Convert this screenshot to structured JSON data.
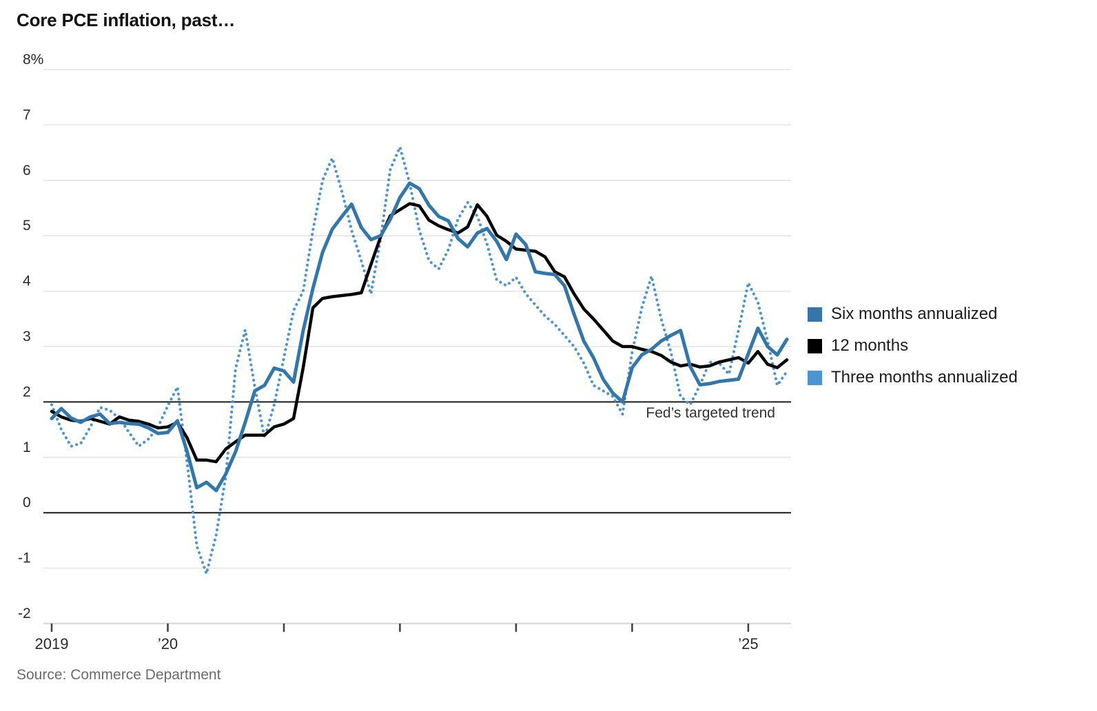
{
  "header": {
    "title": "Core PCE inflation, past…"
  },
  "annotation": {
    "fed_target_label": "Fed’s targeted trend"
  },
  "source": {
    "text": "Source: Commerce Department"
  },
  "legend": [
    {
      "label": "Six months annualized",
      "color": "#3577ab"
    },
    {
      "label": "12 months",
      "color": "#000000"
    },
    {
      "label": "Three months annualized",
      "color": "#4a94d4"
    }
  ],
  "chart_data": {
    "type": "line",
    "title": "Core PCE inflation, past…",
    "x_unit": "monthly, Jan 2019 – May 2025",
    "ylim": [
      -2,
      8
    ],
    "grid": "horizontal",
    "legend_position": "right",
    "y_ticks": [
      {
        "value": 8,
        "label": "8%"
      },
      {
        "value": 7,
        "label": "7"
      },
      {
        "value": 6,
        "label": "6"
      },
      {
        "value": 5,
        "label": "5"
      },
      {
        "value": 4,
        "label": "4"
      },
      {
        "value": 3,
        "label": "3"
      },
      {
        "value": 2,
        "label": "2"
      },
      {
        "value": 1,
        "label": "1"
      },
      {
        "value": 0,
        "label": "0"
      },
      {
        "value": -1,
        "label": "-1"
      },
      {
        "value": -2,
        "label": "-2"
      }
    ],
    "x_ticks": [
      {
        "year": 2019,
        "label": "2019"
      },
      {
        "year": 2020,
        "label": "’20"
      },
      {
        "year": 2021,
        "label": ""
      },
      {
        "year": 2022,
        "label": ""
      },
      {
        "year": 2023,
        "label": ""
      },
      {
        "year": 2024,
        "label": ""
      },
      {
        "year": 2025,
        "label": "’25"
      }
    ],
    "reference_lines": [
      {
        "value": 2,
        "label": "Fed’s targeted trend"
      },
      {
        "value": 0,
        "label": ""
      }
    ],
    "series": [
      {
        "name": "Three months annualized",
        "style": "dotted",
        "color": "#4a94d4",
        "values": [
          1.95,
          1.5,
          1.2,
          1.25,
          1.55,
          1.9,
          1.85,
          1.7,
          1.45,
          1.2,
          1.33,
          1.55,
          1.93,
          2.27,
          0.9,
          -0.6,
          -1.1,
          -0.4,
          0.65,
          2.6,
          3.3,
          2.27,
          1.35,
          1.95,
          2.8,
          3.65,
          4.0,
          5.1,
          6.0,
          6.4,
          5.8,
          5.1,
          4.55,
          3.95,
          4.95,
          6.2,
          6.6,
          5.95,
          5.1,
          4.55,
          4.4,
          4.75,
          5.3,
          5.6,
          5.35,
          4.85,
          4.2,
          4.1,
          4.25,
          3.95,
          3.75,
          3.55,
          3.4,
          3.2,
          3.0,
          2.7,
          2.3,
          2.2,
          2.1,
          1.78,
          2.9,
          3.7,
          4.27,
          3.5,
          2.9,
          2.1,
          1.95,
          2.3,
          2.72,
          2.7,
          2.5,
          3.3,
          4.15,
          3.8,
          3.1,
          2.3,
          2.55
        ]
      },
      {
        "name": "12 months",
        "style": "solid",
        "color": "#000000",
        "values": [
          1.83,
          1.73,
          1.67,
          1.65,
          1.7,
          1.65,
          1.6,
          1.73,
          1.67,
          1.65,
          1.6,
          1.53,
          1.55,
          1.63,
          1.35,
          0.95,
          0.95,
          0.92,
          1.15,
          1.28,
          1.4,
          1.4,
          1.4,
          1.55,
          1.6,
          1.7,
          2.62,
          3.7,
          3.87,
          3.9,
          3.92,
          3.94,
          3.97,
          4.48,
          4.98,
          5.36,
          5.47,
          5.58,
          5.54,
          5.28,
          5.18,
          5.11,
          5.05,
          5.16,
          5.56,
          5.35,
          5.01,
          4.9,
          4.76,
          4.74,
          4.72,
          4.62,
          4.35,
          4.26,
          3.95,
          3.68,
          3.5,
          3.3,
          3.1,
          3.0,
          3.0,
          2.95,
          2.91,
          2.84,
          2.72,
          2.65,
          2.68,
          2.63,
          2.65,
          2.72,
          2.76,
          2.8,
          2.7,
          2.91,
          2.68,
          2.62,
          2.76
        ]
      },
      {
        "name": "Six months annualized",
        "style": "solid",
        "color": "#3277ac",
        "values": [
          1.7,
          1.88,
          1.71,
          1.63,
          1.73,
          1.78,
          1.61,
          1.63,
          1.61,
          1.6,
          1.53,
          1.43,
          1.45,
          1.66,
          1.1,
          0.45,
          0.55,
          0.4,
          0.7,
          1.1,
          1.63,
          2.2,
          2.3,
          2.61,
          2.56,
          2.36,
          3.29,
          4.05,
          4.7,
          5.12,
          5.35,
          5.57,
          5.15,
          4.93,
          5.0,
          5.3,
          5.69,
          5.95,
          5.85,
          5.55,
          5.35,
          5.27,
          4.95,
          4.8,
          5.05,
          5.13,
          4.9,
          4.57,
          5.03,
          4.84,
          4.35,
          4.32,
          4.3,
          4.1,
          3.58,
          3.1,
          2.8,
          2.41,
          2.16,
          2.0,
          2.62,
          2.85,
          2.95,
          3.1,
          3.2,
          3.29,
          2.64,
          2.31,
          2.33,
          2.37,
          2.39,
          2.41,
          2.87,
          3.33,
          3.0,
          2.85,
          3.13
        ]
      }
    ]
  }
}
